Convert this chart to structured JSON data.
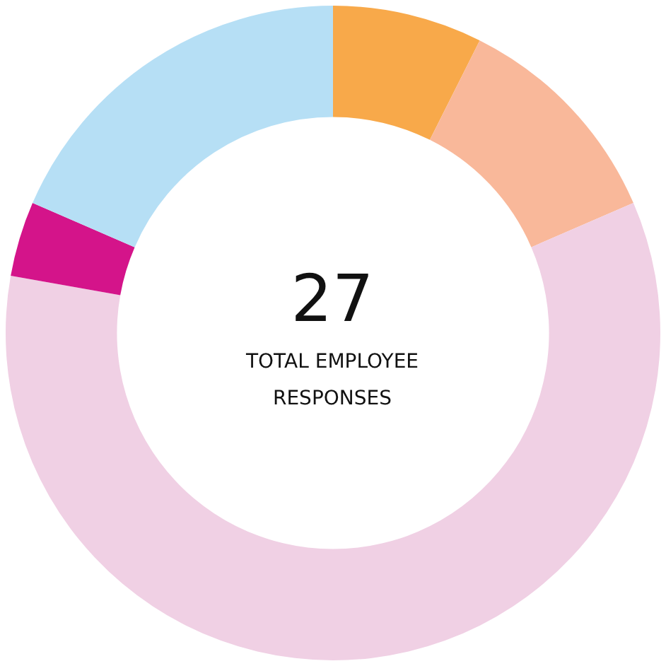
{
  "chart_data": {
    "type": "donut",
    "categories": [
      null,
      null,
      null,
      null,
      null
    ],
    "values": [
      7.4,
      11.1,
      59.3,
      3.7,
      18.5
    ],
    "colors": [
      "#f8a94a",
      "#f9b89a",
      "#f0d0e4",
      "#d4148a",
      "#b6dff5"
    ],
    "annotations": [
      "27",
      "TOTAL EMPLOYEE RESPONSES"
    ],
    "legend": false
  }
}
